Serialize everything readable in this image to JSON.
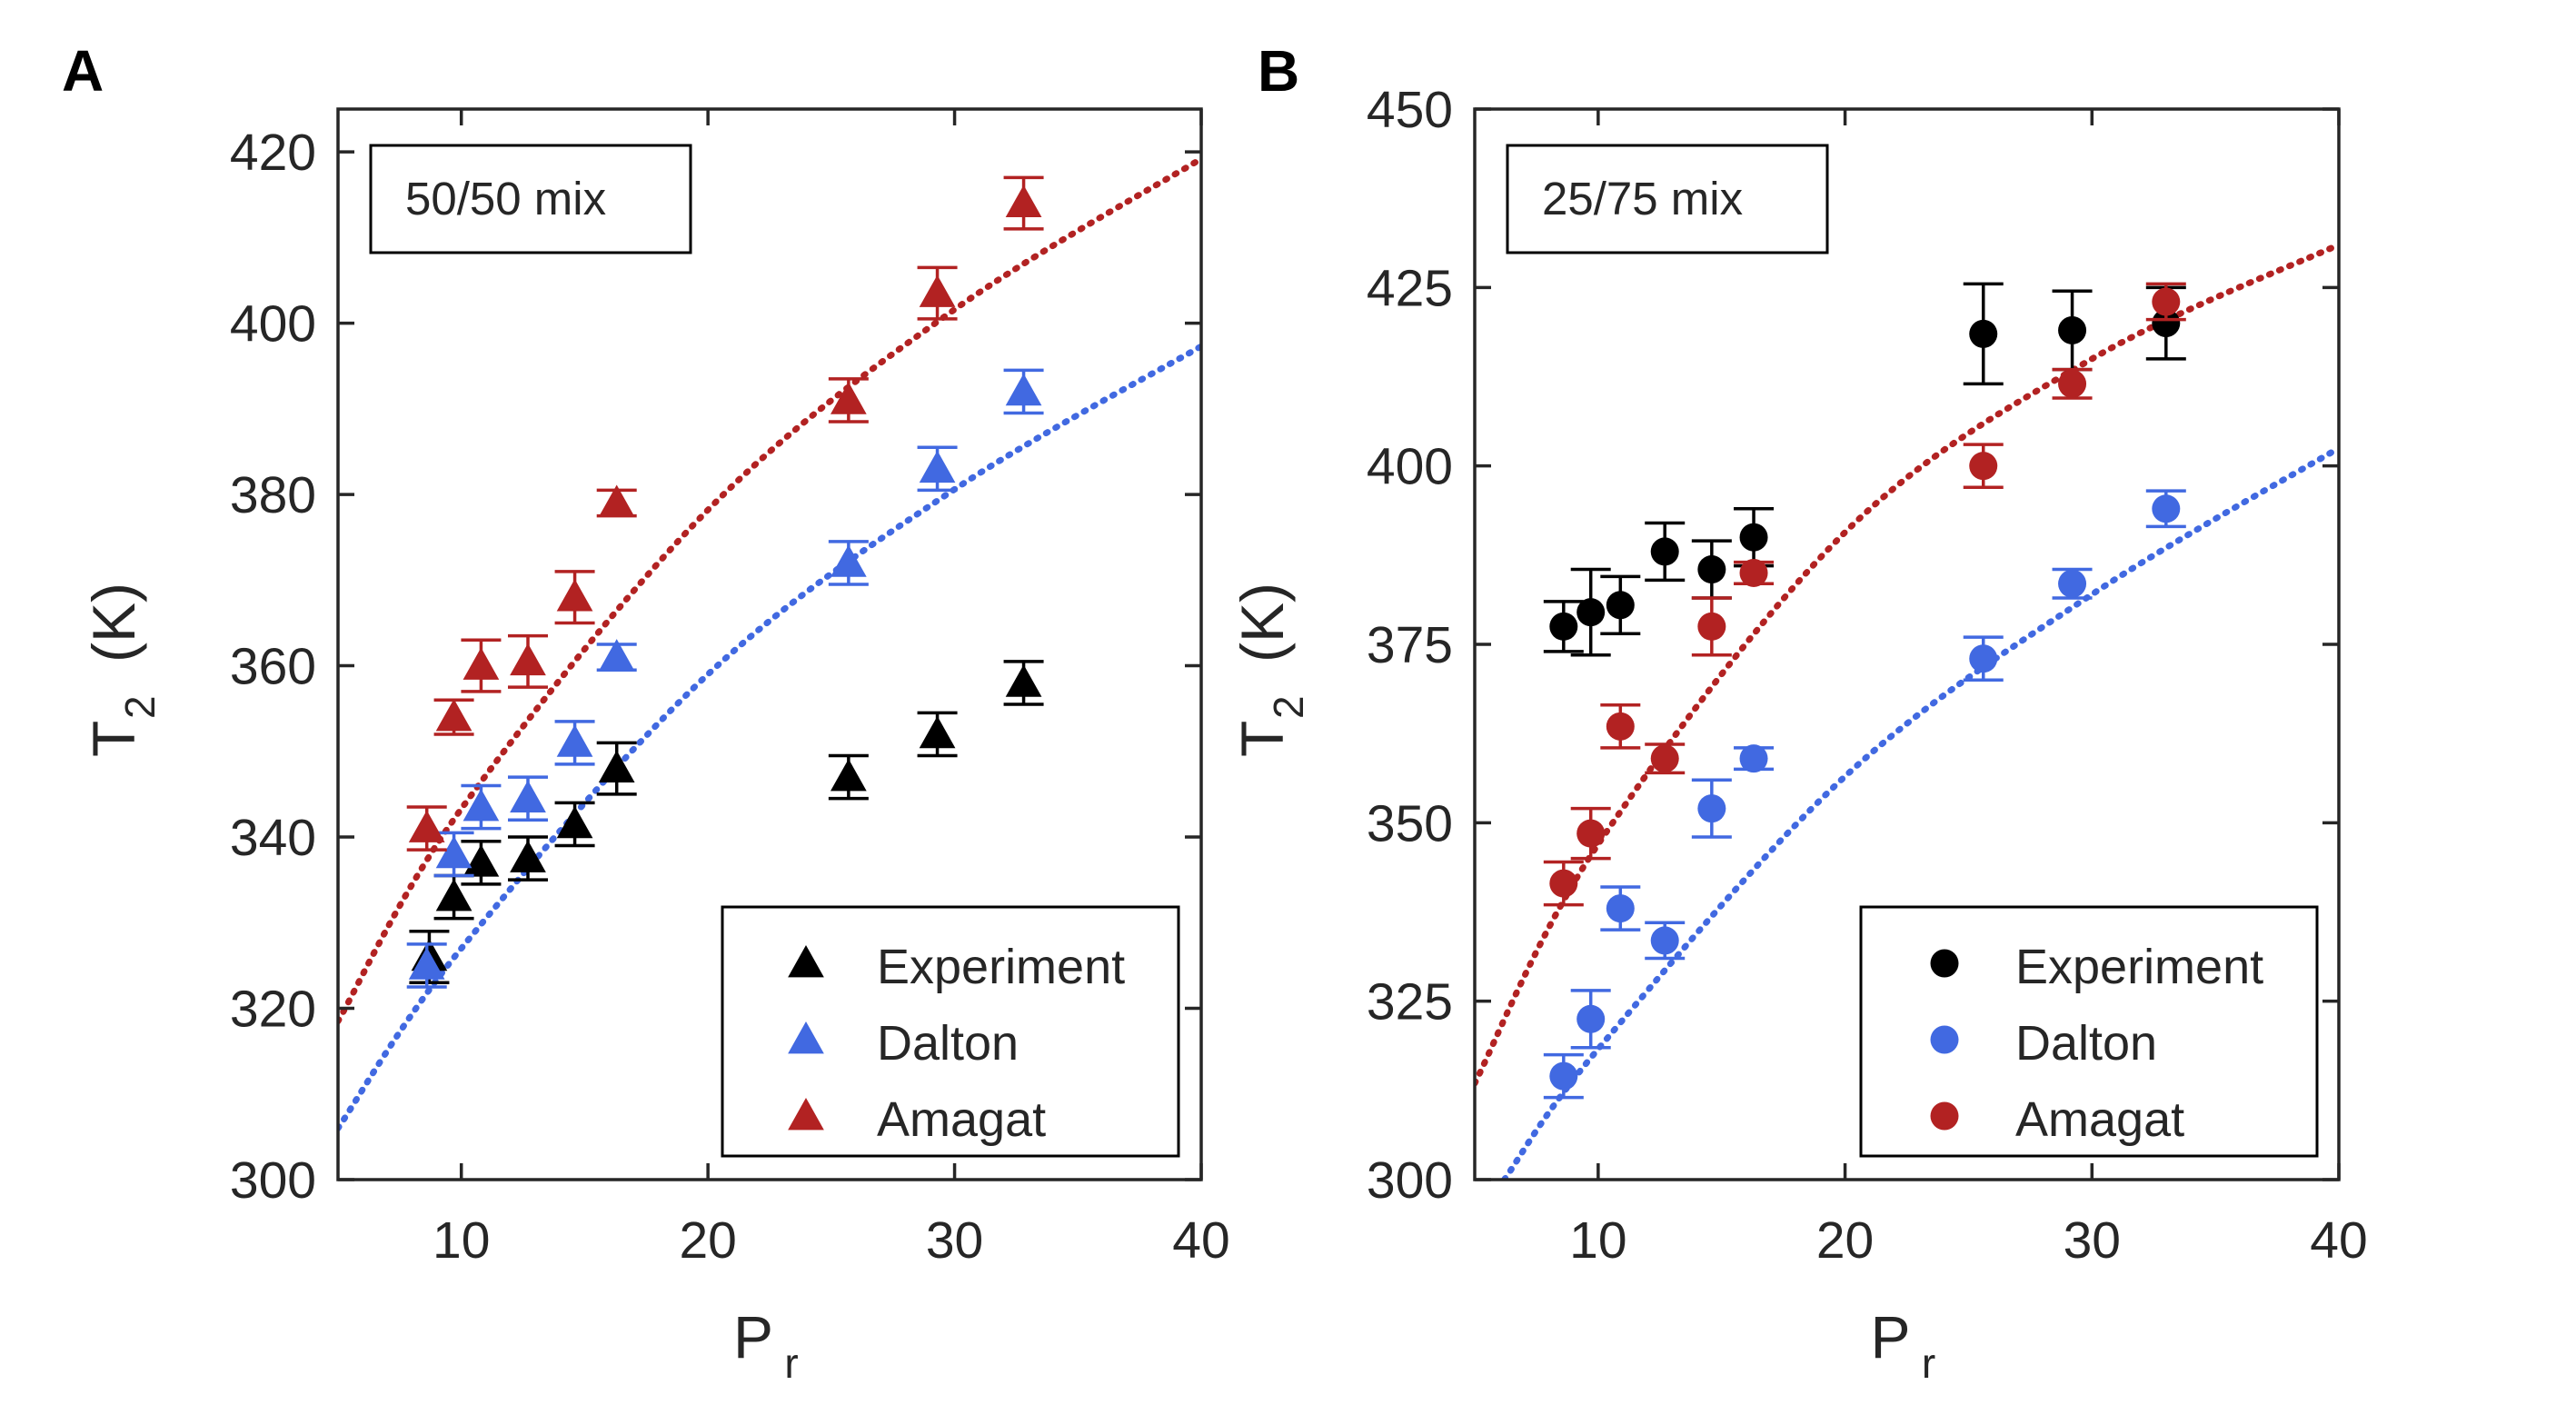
{
  "colors": {
    "experiment": "#000000",
    "dalton": "#4169e1",
    "amagat": "#b22222",
    "axis": "#262626"
  },
  "chart_data": [
    {
      "panel_label": "A",
      "type": "scatter",
      "annotation": "50/50 mix",
      "marker": "triangle",
      "xlabel": "P",
      "xlabel_sub": "r",
      "ylabel": "T",
      "ylabel_sub": "2",
      "ylabel_unit": "(K)",
      "xlim": [
        5,
        40
      ],
      "ylim": [
        300,
        425
      ],
      "xticks": [
        10,
        20,
        30,
        40
      ],
      "yticks": [
        300,
        320,
        340,
        360,
        380,
        400,
        420
      ],
      "legend_position": "bottom-right",
      "series": [
        {
          "key": "experiment",
          "name": "Experiment",
          "x": [
            8.7,
            9.7,
            10.8,
            12.7,
            14.6,
            16.3,
            25.7,
            29.3,
            32.8
          ],
          "y": [
            326.0,
            333.0,
            337.0,
            337.5,
            341.5,
            348.0,
            347.0,
            352.0,
            358.0
          ],
          "err": [
            3.0,
            2.5,
            2.5,
            2.5,
            2.5,
            3.0,
            2.5,
            2.5,
            2.5
          ]
        },
        {
          "key": "dalton",
          "name": "Dalton",
          "x": [
            8.6,
            9.7,
            10.8,
            12.7,
            14.6,
            16.3,
            25.7,
            29.3,
            32.8
          ],
          "y": [
            325.0,
            338.0,
            343.5,
            344.5,
            351.0,
            361.0,
            372.0,
            383.0,
            392.0
          ],
          "err": [
            2.5,
            2.5,
            2.5,
            2.5,
            2.5,
            1.5,
            2.5,
            2.5,
            2.5
          ]
        },
        {
          "key": "amagat",
          "name": "Amagat",
          "x": [
            8.6,
            9.7,
            10.8,
            12.7,
            14.6,
            16.3,
            25.7,
            29.3,
            32.8
          ],
          "y": [
            341.0,
            354.0,
            360.0,
            360.5,
            368.0,
            379.0,
            391.0,
            403.5,
            414.0
          ],
          "err": [
            2.5,
            2.0,
            3.0,
            3.0,
            3.0,
            1.5,
            2.5,
            3.0,
            3.0
          ]
        }
      ],
      "fits": [
        {
          "key": "amagat",
          "x": [
            5,
            10,
            20,
            30,
            40
          ],
          "y": [
            318.5,
            343.3,
            378.2,
            401.6,
            419.2
          ]
        },
        {
          "key": "dalton",
          "x": [
            5,
            10,
            20,
            30,
            40
          ],
          "y": [
            306.0,
            327.0,
            359.0,
            380.6,
            397.3
          ]
        }
      ]
    },
    {
      "panel_label": "B",
      "type": "scatter",
      "annotation": "25/75 mix",
      "marker": "circle",
      "xlabel": "P",
      "xlabel_sub": "r",
      "ylabel": "T",
      "ylabel_sub": "2",
      "ylabel_unit": "(K)",
      "xlim": [
        5,
        40
      ],
      "ylim": [
        300,
        450
      ],
      "xticks": [
        10,
        20,
        30,
        40
      ],
      "yticks": [
        300,
        325,
        350,
        375,
        400,
        425,
        450
      ],
      "legend_position": "bottom-right",
      "series": [
        {
          "key": "experiment",
          "name": "Experiment",
          "x": [
            8.6,
            9.7,
            10.9,
            12.7,
            14.6,
            16.3,
            25.6,
            29.2,
            33.0
          ],
          "y": [
            377.5,
            379.5,
            380.5,
            388.0,
            385.5,
            390.0,
            418.5,
            419.0,
            420.0
          ],
          "err": [
            3.5,
            6.0,
            4.0,
            4.0,
            4.0,
            4.0,
            7.0,
            5.5,
            5.0
          ]
        },
        {
          "key": "dalton",
          "name": "Dalton",
          "x": [
            8.6,
            9.7,
            10.9,
            12.7,
            14.6,
            16.3,
            25.6,
            29.2,
            33.0
          ],
          "y": [
            314.5,
            322.5,
            338.0,
            333.5,
            352.0,
            359.0,
            373.0,
            383.5,
            394.0
          ],
          "err": [
            3.0,
            4.0,
            3.0,
            2.5,
            4.0,
            1.5,
            3.0,
            2.0,
            2.5
          ]
        },
        {
          "key": "amagat",
          "name": "Amagat",
          "x": [
            8.6,
            9.7,
            10.9,
            12.7,
            14.6,
            16.3,
            25.6,
            29.2,
            33.0
          ],
          "y": [
            341.5,
            348.5,
            363.5,
            359.0,
            377.5,
            385.0,
            400.0,
            411.5,
            423.0
          ],
          "err": [
            3.0,
            3.5,
            3.0,
            2.0,
            4.0,
            1.5,
            3.0,
            2.0,
            2.5
          ]
        }
      ],
      "fits": [
        {
          "key": "amagat",
          "x": [
            5,
            10,
            20,
            30,
            40
          ],
          "y": [
            313.5,
            347.0,
            390.7,
            415.0,
            431.0
          ]
        },
        {
          "key": "dalton",
          "x": [
            6.2,
            10,
            20,
            30,
            40
          ],
          "y": [
            300.0,
            318.3,
            356.5,
            382.0,
            402.5
          ]
        }
      ]
    }
  ]
}
